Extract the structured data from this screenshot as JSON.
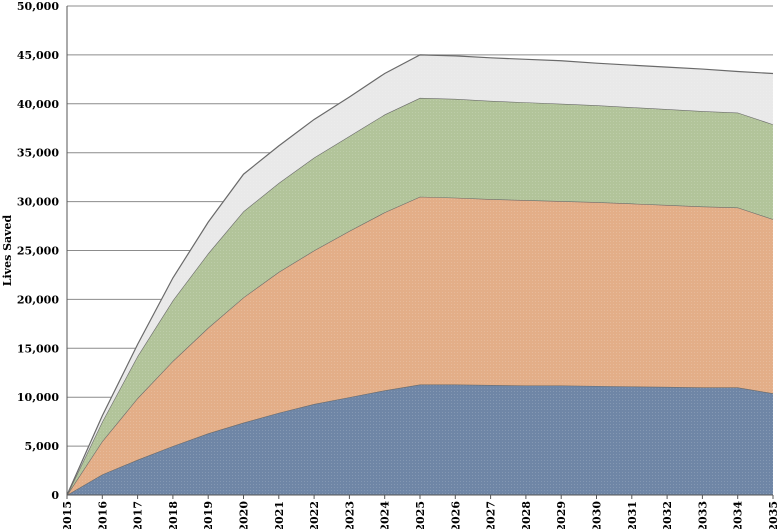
{
  "chart_data": {
    "type": "area",
    "stacked": true,
    "title": "",
    "xlabel": "",
    "ylabel": "Lives Saved",
    "ylim": [
      0,
      50000
    ],
    "yticks": [
      0,
      5000,
      10000,
      15000,
      20000,
      25000,
      30000,
      35000,
      40000,
      45000,
      50000
    ],
    "ytick_labels": [
      "0",
      "5,000",
      "10,000",
      "15,000",
      "20,000",
      "25,000",
      "30,000",
      "35,000",
      "40,000",
      "45,000",
      "50,000"
    ],
    "grid": true,
    "legend": "none",
    "x": [
      "2015",
      "2016",
      "2017",
      "2018",
      "2019",
      "2020",
      "2021",
      "2022",
      "2023",
      "2024",
      "2025",
      "2026",
      "2027",
      "2028",
      "2029",
      "2030",
      "2031",
      "2032",
      "2033",
      "2034",
      "2035"
    ],
    "series": [
      {
        "color": "#6f86a6",
        "values": [
          0,
          2100,
          3600,
          5000,
          6300,
          7400,
          8400,
          9300,
          10000,
          10700,
          11300,
          11300,
          11250,
          11200,
          11200,
          11150,
          11100,
          11050,
          11000,
          11000,
          10400
        ]
      },
      {
        "color": "#e3ae88",
        "values": [
          0,
          3400,
          6300,
          8700,
          10800,
          12800,
          14400,
          15700,
          17000,
          18200,
          19200,
          19100,
          19000,
          18950,
          18850,
          18800,
          18700,
          18600,
          18500,
          18400,
          17800
        ]
      },
      {
        "color": "#b2c49a",
        "values": [
          0,
          2000,
          4300,
          6200,
          7600,
          8800,
          9100,
          9500,
          9700,
          10000,
          10100,
          10100,
          10050,
          10000,
          9950,
          9900,
          9850,
          9800,
          9750,
          9700,
          9700
        ]
      },
      {
        "color": "#e9e9e9",
        "values": [
          0,
          600,
          1200,
          2300,
          3200,
          3800,
          3800,
          3900,
          4000,
          4200,
          4400,
          4400,
          4400,
          4400,
          4400,
          4300,
          4300,
          4300,
          4300,
          4200,
          5200
        ]
      }
    ]
  }
}
